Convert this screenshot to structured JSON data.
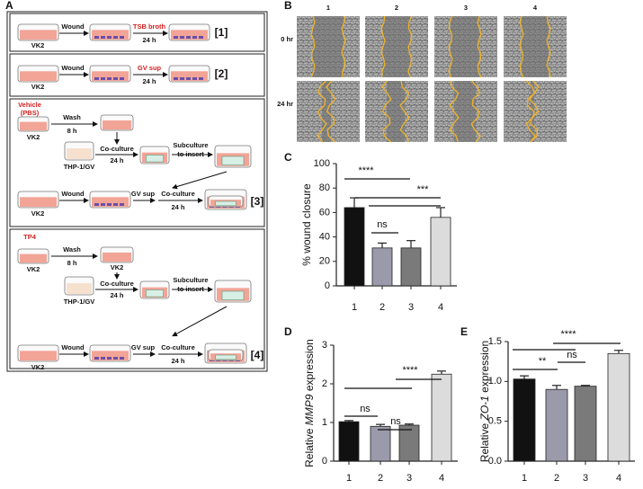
{
  "panels": {
    "a": "A",
    "b": "B",
    "c": "C",
    "d": "D",
    "e": "E"
  },
  "diagram": {
    "p1": {
      "cell": "VK2",
      "step": "Wound",
      "treatment": "TSB broth",
      "time": "24 h",
      "tag": "[1]"
    },
    "p2": {
      "cell": "VK2",
      "step": "Wound",
      "treatment": "GV sup",
      "time": "24 h",
      "tag": "[2]"
    },
    "p3": {
      "treatment": [
        "Vehicle",
        "(PBS)"
      ],
      "wash": "Wash",
      "wash_time": "8 h",
      "cell": "VK2",
      "coculture": "Co-culture",
      "coculture_time": "24 h",
      "monocyte": "THP-1/GV",
      "subculture": [
        "Subculture",
        "to insert"
      ],
      "cell2": "VK2",
      "step": "Wound",
      "sup": "GV sup",
      "coculture2": "Co-culture",
      "time2": "24 h",
      "tag": "[3]"
    },
    "p4": {
      "treatment": [
        "TP4"
      ],
      "wash": "Wash",
      "wash_time": "8 h",
      "cell": "VK2",
      "cell_mid": "VK2",
      "coculture": "Co-culture",
      "coculture_time": "24 h",
      "monocyte": "THP-1/GV",
      "subculture": [
        "Subculture",
        "to insert"
      ],
      "cell2": "VK2",
      "step": "Wound",
      "sup": "GV sup",
      "coculture2": "Co-culture",
      "time2": "24 h",
      "tag": "[4]"
    }
  },
  "images": {
    "columns": [
      "1",
      "2",
      "3",
      "4"
    ],
    "rows": [
      "0 hr",
      "24 hr"
    ]
  },
  "chart_data": [
    {
      "type": "bar",
      "ylabel": [
        "% wound closure"
      ],
      "categories": [
        "1",
        "2",
        "3",
        "4"
      ],
      "values": [
        64,
        31,
        31,
        56
      ],
      "errors": [
        8,
        4,
        6,
        8
      ],
      "colors": [
        "#111111",
        "#9a9aab",
        "#7a7a7a",
        "#dcdcdc"
      ],
      "ylim": [
        0,
        100
      ],
      "yticks": [
        0,
        20,
        40,
        60,
        80,
        100
      ],
      "annotations": [
        "****",
        "***",
        "ns"
      ]
    },
    {
      "type": "bar",
      "ylabel": [
        "Relative ",
        "MMP9",
        " expression"
      ],
      "categories": [
        "1",
        "2",
        "3",
        "4"
      ],
      "values": [
        1.02,
        0.9,
        0.93,
        2.25
      ],
      "errors": [
        0.03,
        0.05,
        0.03,
        0.08
      ],
      "colors": [
        "#111111",
        "#9a9aab",
        "#7a7a7a",
        "#dcdcdc"
      ],
      "ylim": [
        0,
        3
      ],
      "yticks": [
        0,
        1,
        2,
        3
      ],
      "annotations": [
        "ns",
        "ns",
        "****"
      ]
    },
    {
      "type": "bar",
      "ylabel": [
        "Relative ",
        "ZO-1",
        " expression"
      ],
      "categories": [
        "1",
        "2",
        "3",
        "4"
      ],
      "values": [
        1.03,
        0.9,
        0.94,
        1.35
      ],
      "errors": [
        0.04,
        0.05,
        0.01,
        0.04
      ],
      "colors": [
        "#111111",
        "#9a9aab",
        "#7a7a7a",
        "#dcdcdc"
      ],
      "ylim": [
        0,
        1.5
      ],
      "yticks": [
        {
          "value": 0,
          "label": "0.0"
        },
        {
          "value": 0.5,
          "label": "0.5"
        },
        {
          "value": 1,
          "label": "1.0"
        },
        {
          "value": 1.5,
          "label": "1.5"
        }
      ],
      "annotations": [
        "**",
        "ns",
        "****"
      ]
    }
  ]
}
